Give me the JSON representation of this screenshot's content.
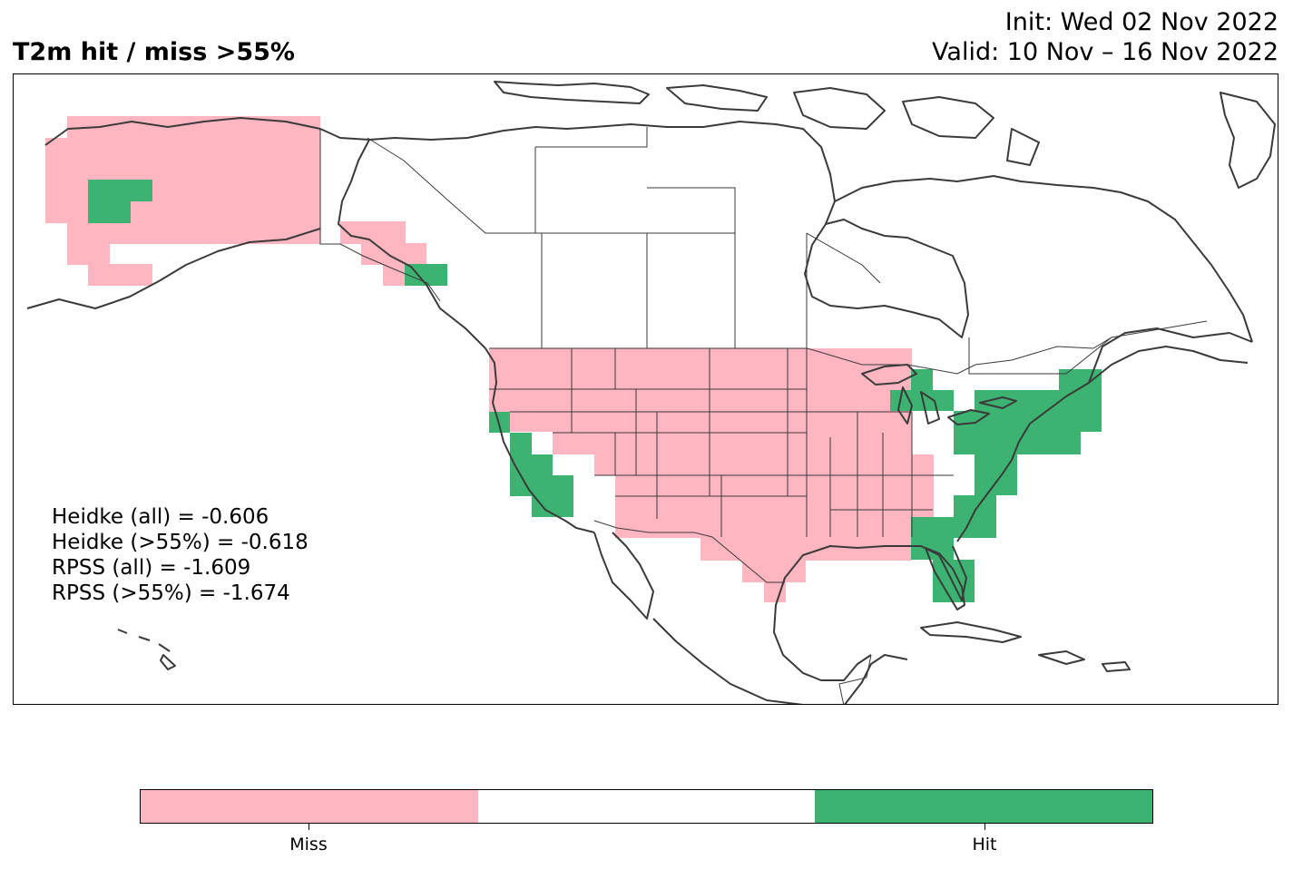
{
  "header": {
    "title": "T2m hit / miss  >55%",
    "init": "Init: Wed 02 Nov 2022",
    "valid": "Valid: 10 Nov – 16 Nov 2022"
  },
  "stats": [
    "Heidke (all) = -0.606",
    "Heidke (>55%) = -0.618",
    "RPSS (all) = -1.609",
    "RPSS (>55%) = -1.674"
  ],
  "colorbar": {
    "colors": {
      "miss": "#FFB6C1",
      "neutral": "#FFFFFF",
      "hit": "#3CB371"
    },
    "labels": [
      "Miss",
      "Hit"
    ]
  }
}
